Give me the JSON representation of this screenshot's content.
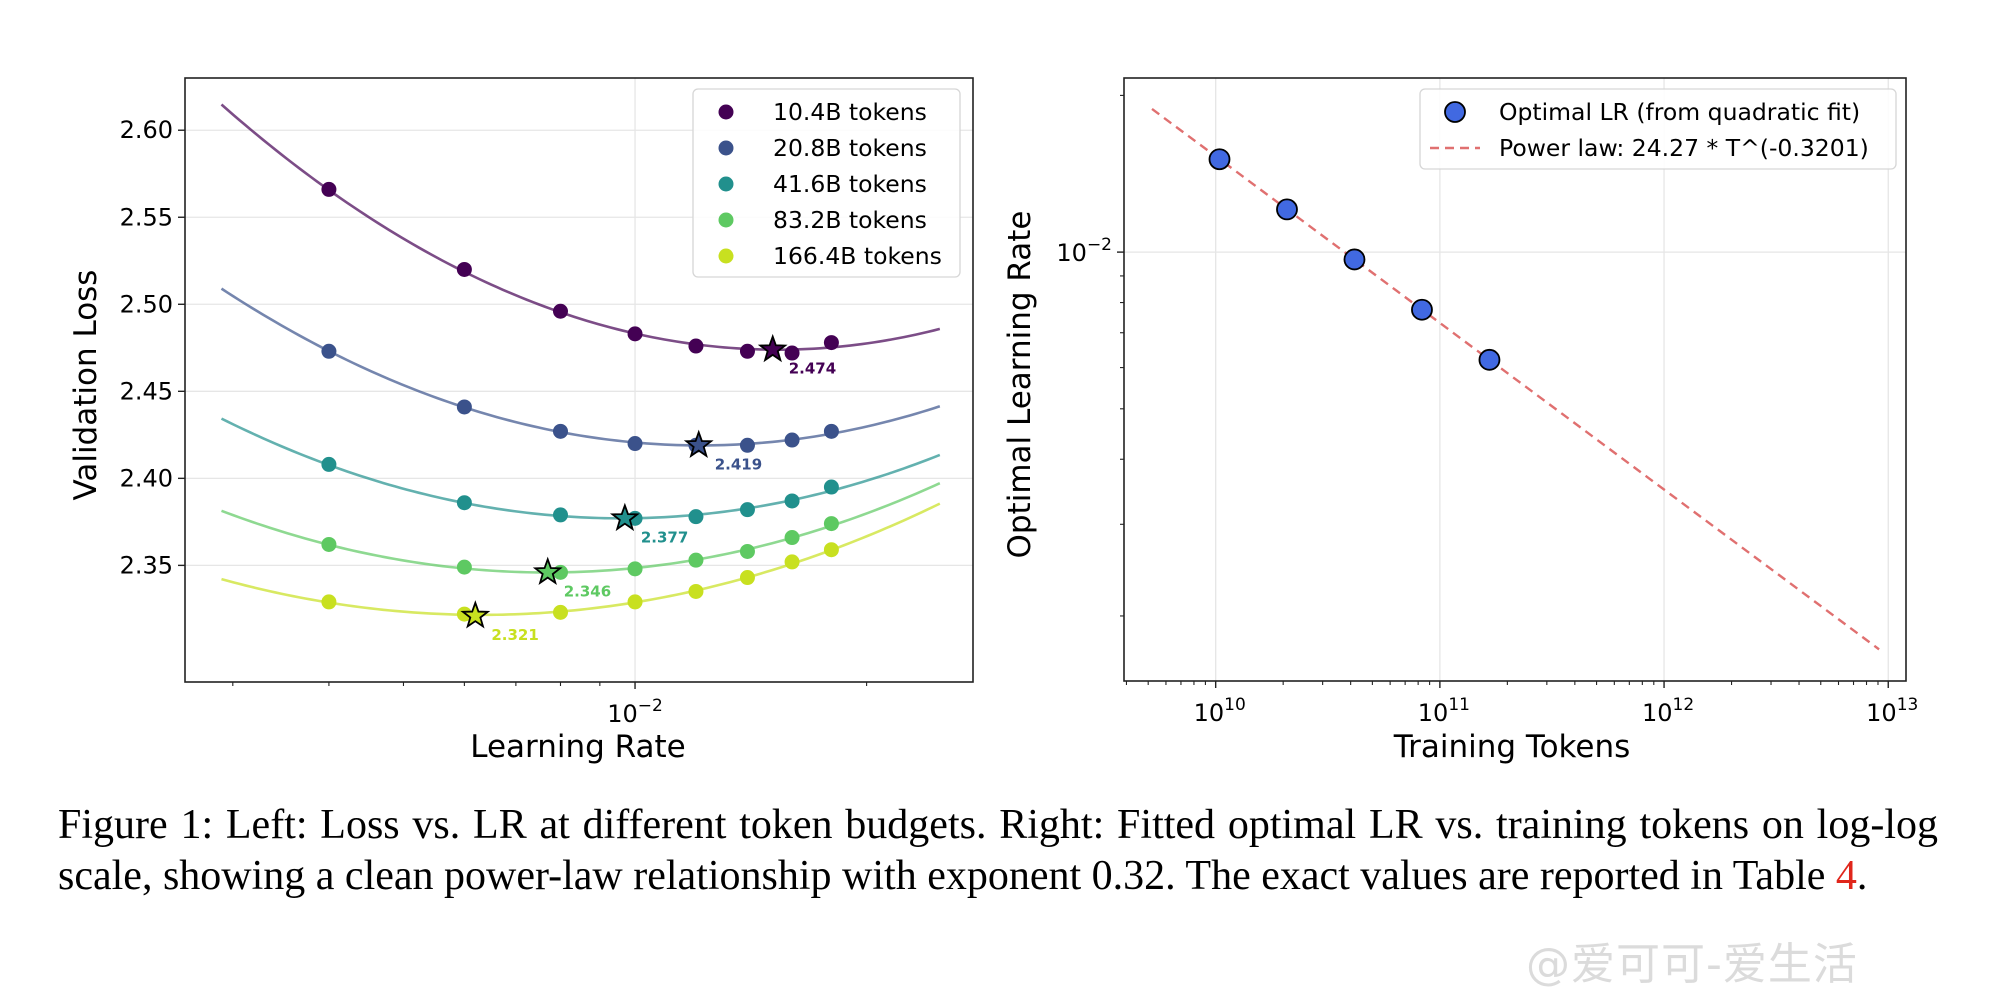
{
  "chart_data": [
    {
      "type": "line",
      "subtype": "scatter-with-quadratic-fit",
      "title": "",
      "xlabel": "Learning Rate",
      "ylabel": "Validation Loss",
      "xscale": "log",
      "xlim": [
        0.0026,
        0.0275
      ],
      "ylim": [
        2.283,
        2.63
      ],
      "x_ticks": [
        {
          "value": 0.01,
          "base": "10",
          "exp": "−2"
        }
      ],
      "y_ticks": [
        2.35,
        2.4,
        2.45,
        2.5,
        2.55,
        2.6
      ],
      "y_tick_labels": [
        "2.35",
        "2.40",
        "2.45",
        "2.50",
        "2.55",
        "2.60"
      ],
      "grid": true,
      "legend_position": "top-right",
      "x": [
        0.004,
        0.006,
        0.008,
        0.01,
        0.012,
        0.014,
        0.016,
        0.018
      ],
      "fit_range": [
        0.0029,
        0.0249
      ],
      "series": [
        {
          "name": "10.4B tokens",
          "color": "#440154",
          "values": [
            2.566,
            2.52,
            2.496,
            2.483,
            2.476,
            2.473,
            2.472,
            2.478
          ],
          "optimum": {
            "lr": 0.0151,
            "loss": 2.474,
            "label": "2.474"
          },
          "fit_edges": {
            "start": 2.614,
            "end": 2.486
          }
        },
        {
          "name": "20.8B tokens",
          "color": "#3b528b",
          "values": [
            2.473,
            2.441,
            2.427,
            2.42,
            2.419,
            2.419,
            2.422,
            2.427
          ],
          "optimum": {
            "lr": 0.0121,
            "loss": 2.419,
            "label": "2.419"
          },
          "fit_edges": {
            "start": 2.509,
            "end": 2.441
          }
        },
        {
          "name": "41.6B tokens",
          "color": "#21908d",
          "values": [
            2.408,
            2.386,
            2.379,
            2.377,
            2.378,
            2.382,
            2.387,
            2.395
          ],
          "optimum": {
            "lr": 0.0097,
            "loss": 2.377,
            "label": "2.377"
          },
          "fit_edges": {
            "start": 2.434,
            "end": 2.413
          }
        },
        {
          "name": "83.2B tokens",
          "color": "#5ec962",
          "values": [
            2.362,
            2.349,
            2.346,
            2.348,
            2.353,
            2.358,
            2.366,
            2.374
          ],
          "optimum": {
            "lr": 0.0077,
            "loss": 2.346,
            "label": "2.346"
          },
          "fit_edges": {
            "start": 2.381,
            "end": 2.397
          }
        },
        {
          "name": "166.4B tokens",
          "color": "#c8e020",
          "values": [
            2.329,
            2.322,
            2.323,
            2.329,
            2.335,
            2.343,
            2.352,
            2.359
          ],
          "optimum": {
            "lr": 0.0062,
            "loss": 2.321,
            "label": "2.321"
          },
          "fit_edges": {
            "start": 2.342,
            "end": 2.385
          }
        }
      ]
    },
    {
      "type": "scatter",
      "title": "",
      "xlabel": "Training Tokens",
      "ylabel": "Optimal Learning Rate",
      "xscale": "log",
      "yscale": "log",
      "xlim": [
        3900000000.0,
        12000000000000.0
      ],
      "ylim": [
        0.0015,
        0.0216
      ],
      "x_ticks": [
        {
          "value": 10000000000.0,
          "base": "10",
          "exp": "10"
        },
        {
          "value": 100000000000.0,
          "base": "10",
          "exp": "11"
        },
        {
          "value": 1000000000000.0,
          "base": "10",
          "exp": "12"
        },
        {
          "value": 10000000000000.0,
          "base": "10",
          "exp": "13"
        }
      ],
      "y_ticks": [
        {
          "value": 0.01,
          "base": "10",
          "exp": "−2"
        }
      ],
      "grid": true,
      "legend_position": "top-right",
      "series": [
        {
          "name": "Optimal LR (from quadratic fit)",
          "kind": "points",
          "color": "#4169e1",
          "x": [
            10400000000.0,
            20800000000.0,
            41600000000.0,
            83200000000.0,
            166400000000.0
          ],
          "values": [
            0.01508,
            0.01208,
            0.00968,
            0.00775,
            0.00621
          ]
        },
        {
          "name": "Power law: 24.27 * T^(-0.3201)",
          "kind": "dashed-line",
          "color": "#e07070",
          "coefficient": 24.27,
          "exponent": -0.3201,
          "x_range": [
            5200000000.0,
            9100000000000.0
          ]
        }
      ]
    }
  ],
  "caption": {
    "text_before_ref": "Figure 1: Left: Loss vs. LR at different token budgets. Right: Fitted optimal LR vs. training tokens on log-log scale, showing a clean power-law relationship with exponent 0.32. The exact values are reported in Table ",
    "ref": "4",
    "text_after_ref": "."
  },
  "watermark": "@爱可可-爱生活"
}
